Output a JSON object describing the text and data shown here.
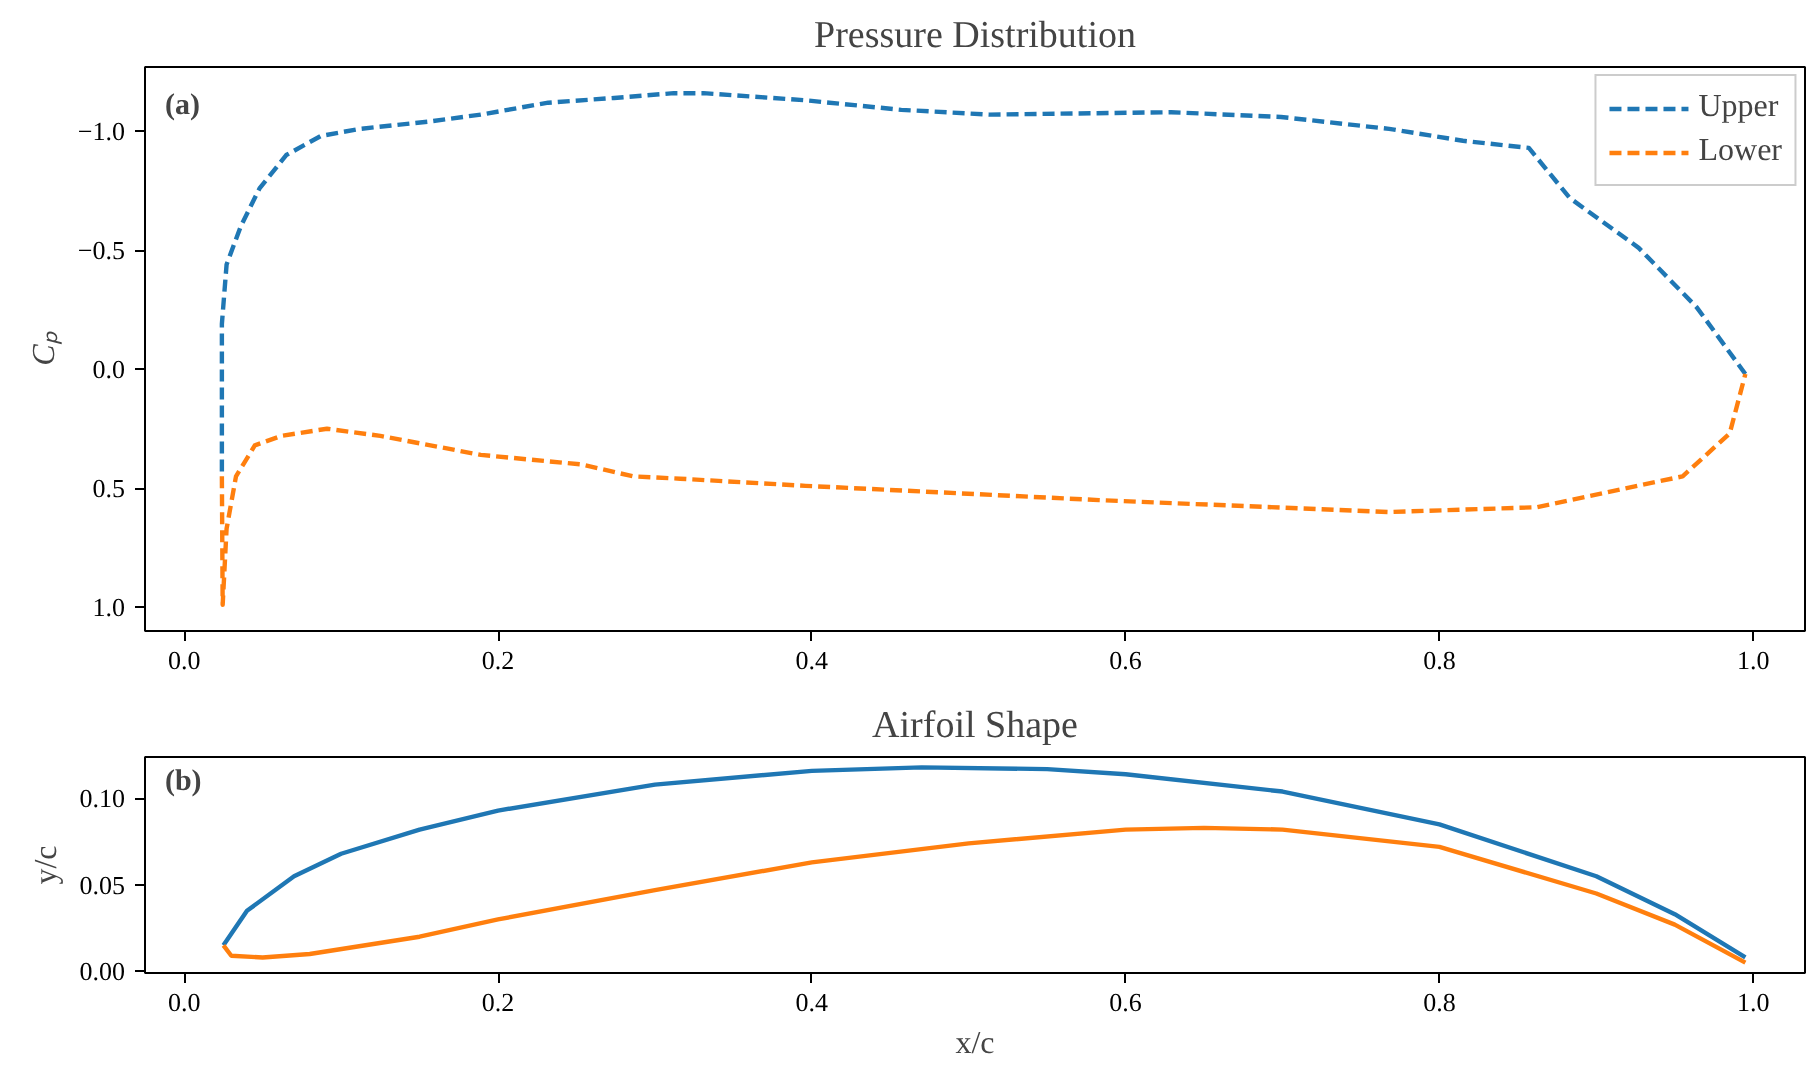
{
  "chart_data": [
    {
      "type": "line",
      "title": "Pressure Distribution",
      "ylabel": "Cₚ",
      "annotations": [
        "(a)"
      ],
      "line_style": "dashed",
      "legend": "top right",
      "grid": false,
      "xlim": [
        -0.025,
        1.033
      ],
      "ylim": [
        1.1,
        -1.27
      ],
      "xticks": [
        {
          "value": 0,
          "label": "0.0"
        },
        {
          "value": 0.2,
          "label": "0.2"
        },
        {
          "value": 0.4,
          "label": "0.4"
        },
        {
          "value": 0.6,
          "label": "0.6"
        },
        {
          "value": 0.8,
          "label": "0.8"
        },
        {
          "value": 1,
          "label": "1.0"
        }
      ],
      "yticks": [
        {
          "value": -1,
          "label": "−1.0"
        },
        {
          "value": -0.5,
          "label": "−0.5"
        },
        {
          "value": 0,
          "label": "0.0"
        },
        {
          "value": 0.5,
          "label": "0.5"
        },
        {
          "value": 1,
          "label": "1.0"
        }
      ],
      "series": [
        {
          "name": "Upper",
          "color": "#1f77b4",
          "x": [
            0.024,
            0.024,
            0.027,
            0.036,
            0.048,
            0.065,
            0.087,
            0.112,
            0.155,
            0.189,
            0.232,
            0.274,
            0.312,
            0.331,
            0.396,
            0.457,
            0.513,
            0.629,
            0.699,
            0.768,
            0.815,
            0.857,
            0.883,
            0.927,
            0.964,
            0.995
          ],
          "values": [
            0.43,
            -0.19,
            -0.44,
            -0.6,
            -0.76,
            -0.9,
            -0.98,
            -1.01,
            -1.04,
            -1.07,
            -1.12,
            -1.14,
            -1.16,
            -1.16,
            -1.13,
            -1.09,
            -1.07,
            -1.08,
            -1.06,
            -1.01,
            -0.96,
            -0.93,
            -0.72,
            -0.51,
            -0.26,
            0.02
          ]
        },
        {
          "name": "Lower",
          "color": "#ff7f0e",
          "x": [
            0.024,
            0.0245,
            0.027,
            0.033,
            0.045,
            0.062,
            0.091,
            0.125,
            0.189,
            0.253,
            0.286,
            0.316,
            0.396,
            0.583,
            0.768,
            0.862,
            0.955,
            0.985,
            0.995
          ],
          "values": [
            0.45,
            0.99,
            0.67,
            0.45,
            0.32,
            0.28,
            0.25,
            0.28,
            0.36,
            0.4,
            0.45,
            0.46,
            0.49,
            0.55,
            0.6,
            0.58,
            0.45,
            0.27,
            0.02
          ]
        }
      ]
    },
    {
      "type": "line",
      "title": "Airfoil Shape",
      "xlabel": "x/c",
      "ylabel": "y/c",
      "annotations": [
        "(b)"
      ],
      "line_style": "solid",
      "grid": false,
      "xlim": [
        -0.025,
        1.033
      ],
      "ylim": [
        -0.001,
        0.124
      ],
      "xticks": [
        {
          "value": 0,
          "label": "0.0"
        },
        {
          "value": 0.2,
          "label": "0.2"
        },
        {
          "value": 0.4,
          "label": "0.4"
        },
        {
          "value": 0.6,
          "label": "0.6"
        },
        {
          "value": 0.8,
          "label": "0.8"
        },
        {
          "value": 1,
          "label": "1.0"
        }
      ],
      "yticks": [
        {
          "value": 0,
          "label": "0.00"
        },
        {
          "value": 0.05,
          "label": "0.05"
        },
        {
          "value": 0.1,
          "label": "0.10"
        }
      ],
      "series": [
        {
          "color": "#1f77b4",
          "x": [
            0.025,
            0.04,
            0.07,
            0.1,
            0.15,
            0.2,
            0.3,
            0.4,
            0.47,
            0.55,
            0.6,
            0.7,
            0.8,
            0.9,
            0.95,
            0.995
          ],
          "values": [
            0.015,
            0.035,
            0.055,
            0.068,
            0.082,
            0.093,
            0.108,
            0.116,
            0.118,
            0.117,
            0.114,
            0.104,
            0.085,
            0.055,
            0.033,
            0.008
          ]
        },
        {
          "color": "#ff7f0e",
          "x": [
            0.025,
            0.03,
            0.05,
            0.08,
            0.15,
            0.2,
            0.3,
            0.4,
            0.5,
            0.6,
            0.65,
            0.7,
            0.8,
            0.9,
            0.95,
            0.995
          ],
          "values": [
            0.015,
            0.009,
            0.008,
            0.01,
            0.02,
            0.03,
            0.047,
            0.063,
            0.074,
            0.082,
            0.083,
            0.082,
            0.072,
            0.045,
            0.027,
            0.005
          ]
        }
      ]
    }
  ]
}
